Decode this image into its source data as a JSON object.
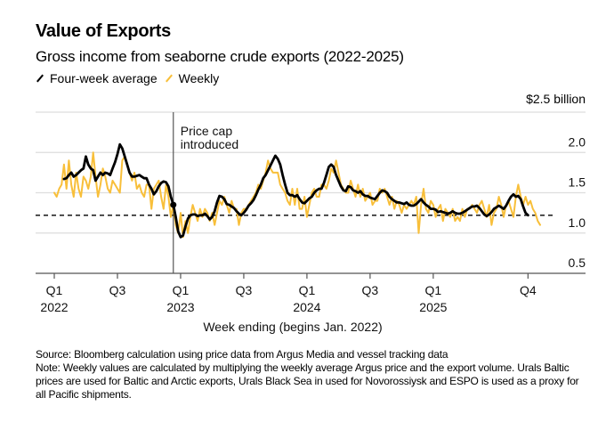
{
  "title": "Value of Exports",
  "subtitle": "Gross income from seaborne crude exports (2022-2025)",
  "legend": [
    {
      "label": "Four-week average",
      "color": "#000000"
    },
    {
      "label": "Weekly",
      "color": "#f8bf3a"
    }
  ],
  "unit_label": "$2.5 billion",
  "footer": {
    "source": "Source: Bloomberg calculation using price data from Argus Media and vessel tracking data",
    "note": "Note: Weekly values are calculated by multiplying the weekly average Argus price and the export volume. Urals Baltic prices are used for Baltic and Arctic exports, Urals Black Sea in used for Novorossiysk and ESPO is used as a proxy for all Pacific shipments."
  },
  "chart_data": {
    "type": "line",
    "title": "Value of Exports",
    "subtitle": "Gross income from seaborne crude exports (2022-2025)",
    "xlabel": "Week ending (begins Jan. 2022)",
    "ylabel": "$ billion",
    "ylim": [
      0.5,
      2.5
    ],
    "yticks": [
      {
        "value": 2.5,
        "label": "$2.5 billion"
      },
      {
        "value": 2.0,
        "label": "2.0"
      },
      {
        "value": 1.5,
        "label": "1.5"
      },
      {
        "value": 1.0,
        "label": "1.0"
      },
      {
        "value": 0.5,
        "label": "0.5"
      }
    ],
    "xticks": [
      {
        "week": 0,
        "line1": "Q1",
        "line2": "2022"
      },
      {
        "week": 26,
        "line1": "Q3",
        "line2": ""
      },
      {
        "week": 52,
        "line1": "Q1",
        "line2": "2023"
      },
      {
        "week": 78,
        "line1": "Q3",
        "line2": ""
      },
      {
        "week": 104,
        "line1": "Q1",
        "line2": "2024"
      },
      {
        "week": 130,
        "line1": "Q3",
        "line2": ""
      },
      {
        "week": 156,
        "line1": "Q1",
        "line2": "2025"
      },
      {
        "week": 195,
        "line1": "Q4",
        "line2": ""
      }
    ],
    "grid": true,
    "legend_position": "top-left",
    "reference_line": {
      "value": 1.22,
      "style": "dashed"
    },
    "annotation": {
      "week": 49,
      "label_line1": "Price cap",
      "label_line2": "introduced",
      "marker_value": 1.35
    },
    "series": [
      {
        "name": "Weekly",
        "color": "#f8bf3a",
        "values": [
          1.5,
          1.45,
          1.55,
          1.6,
          1.85,
          1.55,
          1.9,
          1.6,
          1.45,
          1.75,
          1.55,
          1.45,
          1.7,
          1.65,
          1.55,
          1.7,
          2.0,
          1.7,
          1.45,
          1.6,
          1.8,
          1.7,
          1.55,
          1.5,
          1.65,
          1.6,
          1.55,
          1.5,
          1.9,
          1.95,
          1.85,
          1.75,
          1.65,
          1.75,
          1.55,
          1.6,
          1.5,
          1.45,
          1.6,
          1.6,
          1.3,
          1.55,
          1.6,
          1.65,
          1.45,
          1.3,
          1.6,
          1.45,
          1.2,
          1.35,
          1.1,
          1.0,
          1.25,
          0.95,
          1.15,
          1.0,
          1.2,
          1.35,
          1.25,
          1.15,
          1.3,
          1.2,
          1.3,
          1.25,
          1.15,
          1.25,
          1.1,
          1.25,
          1.4,
          1.35,
          1.45,
          1.35,
          1.25,
          1.4,
          1.3,
          1.3,
          1.1,
          1.25,
          1.3,
          1.3,
          1.35,
          1.4,
          1.45,
          1.5,
          1.6,
          1.55,
          1.65,
          1.75,
          1.9,
          1.8,
          1.75,
          1.75,
          1.75,
          1.6,
          1.55,
          1.5,
          1.4,
          1.35,
          1.55,
          1.35,
          1.55,
          1.3,
          1.3,
          1.45,
          1.2,
          1.35,
          1.5,
          1.55,
          1.45,
          1.45,
          1.6,
          1.6,
          1.55,
          1.65,
          1.8,
          1.75,
          1.9,
          1.75,
          1.6,
          1.55,
          1.5,
          1.5,
          1.65,
          1.55,
          1.45,
          1.6,
          1.45,
          1.55,
          1.4,
          1.45,
          1.5,
          1.35,
          1.4,
          1.4,
          1.55,
          1.5,
          1.55,
          1.45,
          1.35,
          1.45,
          1.3,
          1.4,
          1.35,
          1.25,
          1.35,
          1.3,
          1.35,
          1.4,
          1.35,
          1.45,
          1.0,
          1.35,
          1.55,
          1.3,
          1.25,
          1.4,
          1.35,
          1.2,
          1.3,
          1.35,
          1.15,
          1.3,
          1.25,
          1.2,
          1.3,
          1.15,
          1.2,
          1.15,
          1.3,
          1.2,
          1.3,
          1.3,
          1.35,
          1.3,
          1.25,
          1.35,
          1.4,
          1.3,
          1.2,
          1.35,
          1.1,
          1.25,
          1.3,
          1.45,
          1.35,
          1.2,
          1.35,
          1.4,
          1.3,
          1.2,
          1.45,
          1.6,
          1.45,
          1.35,
          1.45,
          1.35,
          1.4,
          1.3,
          1.25,
          1.15,
          1.1
        ]
      },
      {
        "name": "Four-week average",
        "color": "#000000",
        "values": [
          null,
          null,
          null,
          null,
          1.67,
          1.68,
          1.72,
          1.75,
          1.7,
          1.72,
          1.75,
          1.78,
          1.8,
          1.95,
          1.85,
          1.8,
          1.78,
          1.65,
          1.7,
          1.75,
          1.72,
          1.75,
          1.74,
          1.72,
          1.8,
          1.88,
          1.98,
          2.1,
          2.05,
          1.95,
          1.85,
          1.75,
          1.7,
          1.7,
          1.71,
          1.72,
          1.7,
          1.68,
          1.68,
          1.6,
          1.55,
          1.48,
          1.52,
          1.58,
          1.62,
          1.64,
          1.63,
          1.58,
          1.45,
          1.35,
          1.2,
          1.02,
          0.95,
          0.97,
          1.08,
          1.18,
          1.22,
          1.23,
          1.23,
          1.21,
          1.22,
          1.22,
          1.24,
          1.21,
          1.17,
          1.2,
          1.27,
          1.38,
          1.46,
          1.45,
          1.42,
          1.36,
          1.35,
          1.33,
          1.31,
          1.27,
          1.24,
          1.22,
          1.25,
          1.29,
          1.34,
          1.37,
          1.41,
          1.47,
          1.54,
          1.6,
          1.68,
          1.72,
          1.78,
          1.84,
          1.9,
          1.96,
          1.92,
          1.85,
          1.72,
          1.6,
          1.5,
          1.47,
          1.47,
          1.45,
          1.47,
          1.42,
          1.38,
          1.37,
          1.4,
          1.43,
          1.45,
          1.5,
          1.53,
          1.55,
          1.55,
          1.62,
          1.72,
          1.82,
          1.85,
          1.82,
          1.72,
          1.65,
          1.58,
          1.53,
          1.52,
          1.58,
          1.57,
          1.53,
          1.52,
          1.5,
          1.52,
          1.48,
          1.46,
          1.46,
          1.44,
          1.43,
          1.42,
          1.46,
          1.5,
          1.53,
          1.52,
          1.5,
          1.45,
          1.42,
          1.4,
          1.38,
          1.38,
          1.37,
          1.36,
          1.38,
          1.35,
          1.34,
          1.34,
          1.36,
          1.39,
          1.42,
          1.38,
          1.35,
          1.33,
          1.3,
          1.3,
          1.29,
          1.26,
          1.27,
          1.26,
          1.25,
          1.24,
          1.25,
          1.27,
          1.25,
          1.24,
          1.24,
          1.25,
          1.27,
          1.29,
          1.31,
          1.33,
          1.33,
          1.34,
          1.31,
          1.27,
          1.23,
          1.21,
          1.23,
          1.26,
          1.3,
          1.32,
          1.34,
          1.32,
          1.3,
          1.34,
          1.4,
          1.45,
          1.48,
          1.45,
          1.46,
          1.42,
          1.33,
          1.25,
          1.22
        ]
      }
    ]
  }
}
